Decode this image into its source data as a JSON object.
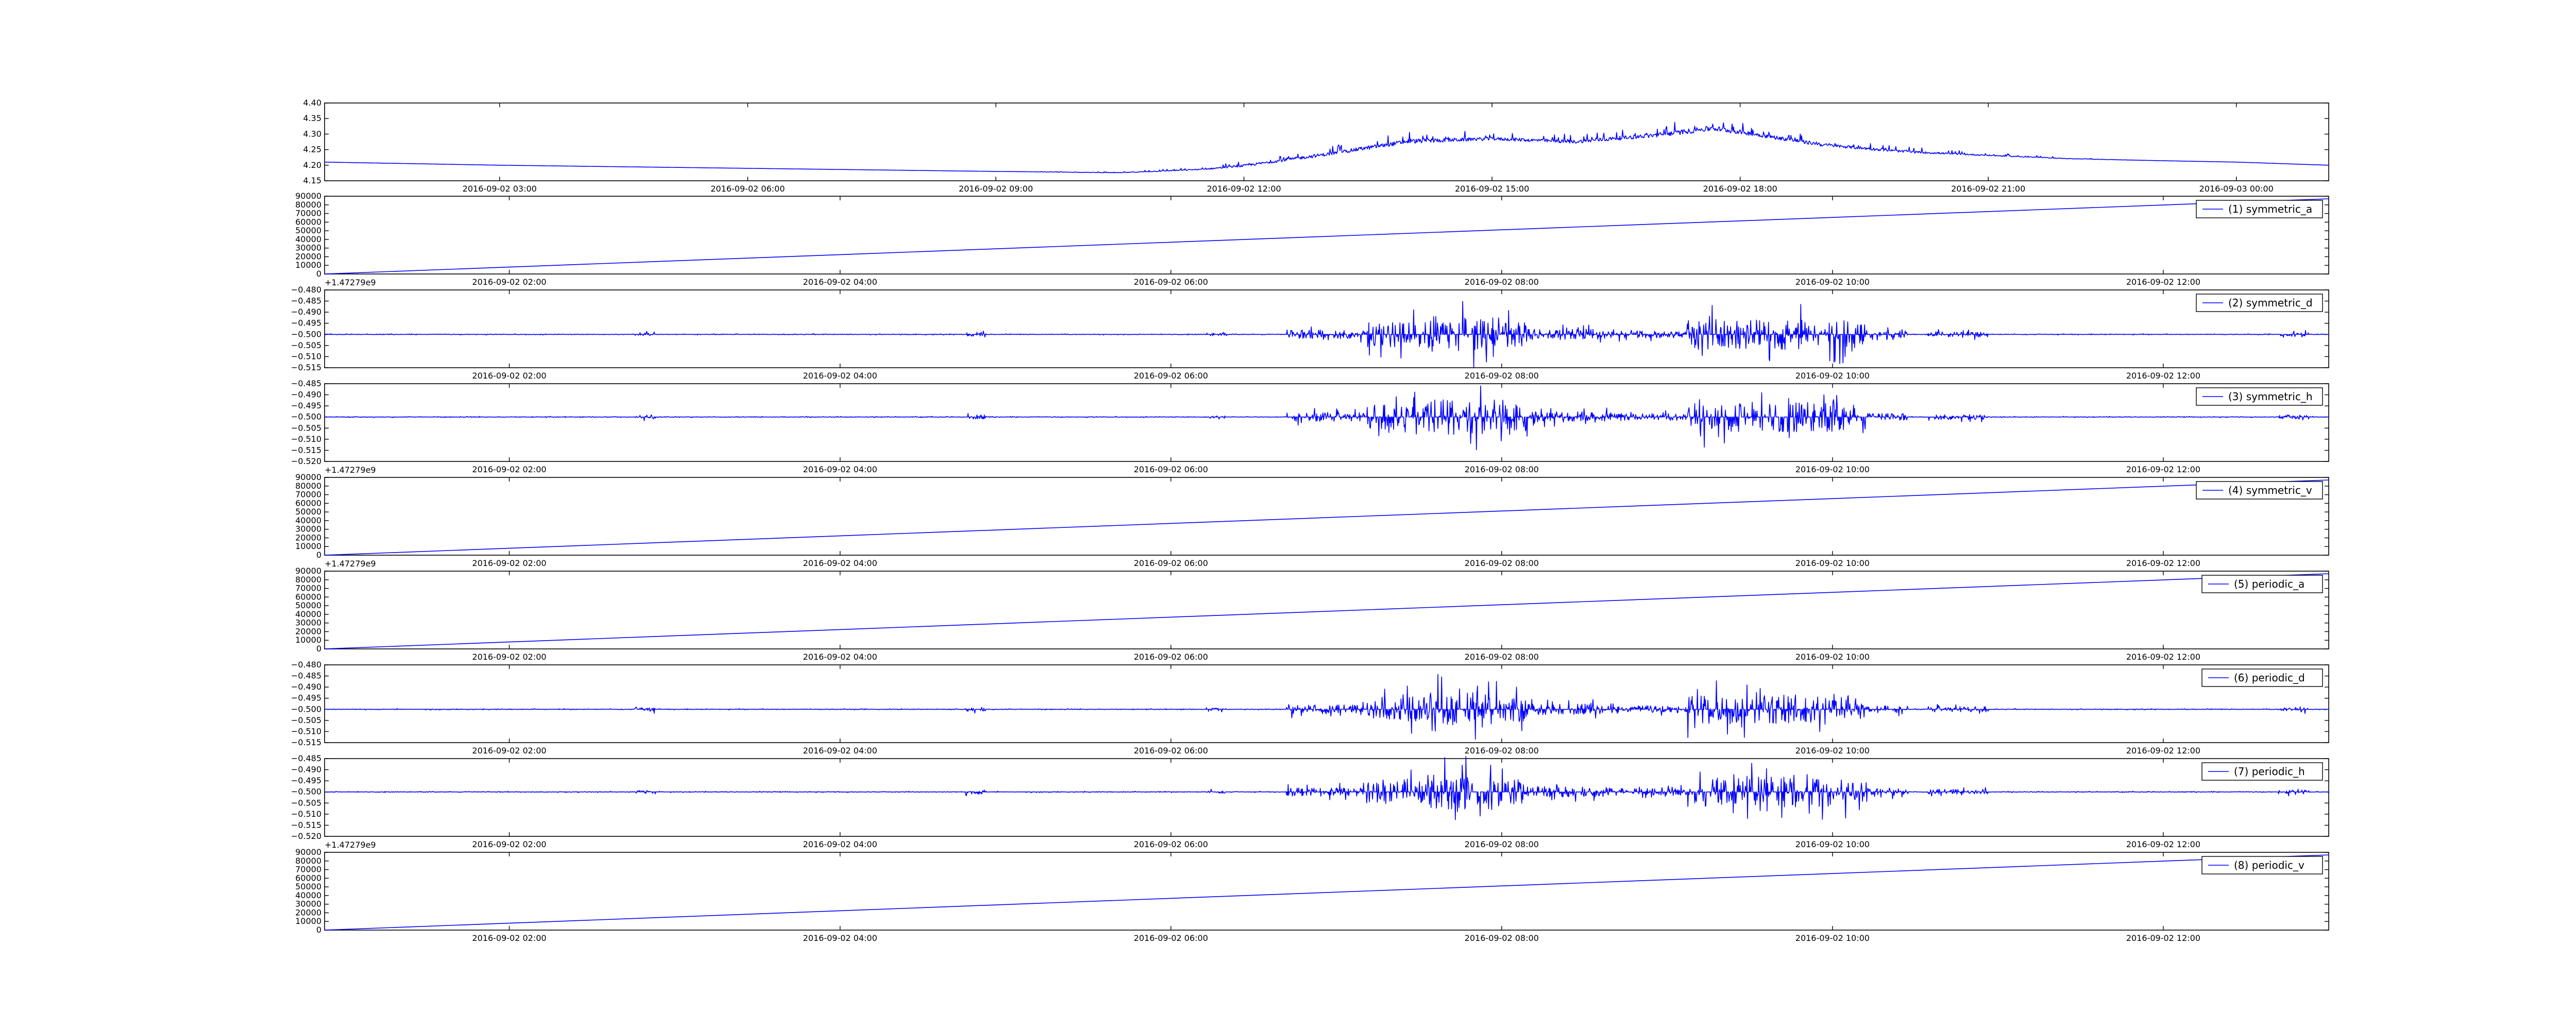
{
  "figure": {
    "line_color": "#0000ff",
    "frame_color": "#000000",
    "background": "#ffffff"
  },
  "chart_data": [
    {
      "type": "line",
      "panel": 0,
      "xlabel": "",
      "ylabel": "",
      "ylim": [
        4.15,
        4.4
      ],
      "yticks": [
        "4.15",
        "4.20",
        "4.25",
        "4.30",
        "4.35",
        "4.40"
      ],
      "xlim": [
        "2016-09-02 00:53",
        "2016-09-03 01:07"
      ],
      "xticks": [
        "2016-09-02 03:00",
        "2016-09-02 06:00",
        "2016-09-02 09:00",
        "2016-09-02 12:00",
        "2016-09-02 15:00",
        "2016-09-02 18:00",
        "2016-09-02 21:00",
        "2016-09-03 00:00"
      ],
      "offset_text": "",
      "grid": false,
      "legend": "",
      "series": [
        {
          "x": [
            "2016-09-02 00:53",
            "2016-09-02 03:00",
            "2016-09-02 06:00",
            "2016-09-02 09:00",
            "2016-09-02 10:30",
            "2016-09-02 11:30",
            "2016-09-02 12:00",
            "2016-09-02 13:00",
            "2016-09-02 14:00",
            "2016-09-02 15:00",
            "2016-09-02 16:00",
            "2016-09-02 17:00",
            "2016-09-02 17:40",
            "2016-09-02 18:00",
            "2016-09-02 19:00",
            "2016-09-02 20:00",
            "2016-09-02 21:00",
            "2016-09-02 22:00",
            "2016-09-02 23:00",
            "2016-09-03 00:00",
            "2016-09-03 01:07"
          ],
          "y": [
            4.21,
            4.2,
            4.19,
            4.18,
            4.175,
            4.185,
            4.195,
            4.23,
            4.27,
            4.28,
            4.27,
            4.29,
            4.31,
            4.3,
            4.26,
            4.24,
            4.23,
            4.22,
            4.215,
            4.21,
            4.2
          ],
          "envelope": [
            0,
            0,
            0,
            0,
            0.005,
            0.01,
            0.02,
            0.03,
            0.04,
            0.03,
            0.03,
            0.04,
            0.05,
            0.04,
            0.03,
            0.02,
            0.01,
            0.005,
            0,
            0,
            0
          ]
        }
      ]
    },
    {
      "type": "line",
      "panel": 1,
      "xlabel": "",
      "ylabel": "",
      "ylim": [
        0,
        90000
      ],
      "yticks": [
        "0",
        "10000",
        "20000",
        "30000",
        "40000",
        "50000",
        "60000",
        "70000",
        "80000",
        "90000"
      ],
      "xlim": [
        "2016-09-02 00:53",
        "2016-09-02 13:00"
      ],
      "xticks": [
        "2016-09-02 02:00",
        "2016-09-02 04:00",
        "2016-09-02 06:00",
        "2016-09-02 08:00",
        "2016-09-02 10:00",
        "2016-09-02 12:00"
      ],
      "offset_text": "+1.47279e9",
      "grid": false,
      "legend": "upper right",
      "series": [
        {
          "name": "(1) symmetric_a",
          "x": [
            "2016-09-02 00:53",
            "2016-09-02 13:00"
          ],
          "y": [
            0,
            87000
          ]
        }
      ]
    },
    {
      "type": "line",
      "panel": 2,
      "xlabel": "",
      "ylabel": "",
      "ylim": [
        -0.515,
        -0.48
      ],
      "yticks": [
        "−0.515",
        "−0.510",
        "−0.505",
        "−0.500",
        "−0.495",
        "−0.490",
        "−0.485",
        "−0.480"
      ],
      "xlim": [
        "2016-09-02 00:53",
        "2016-09-02 13:00"
      ],
      "xticks": [
        "2016-09-02 02:00",
        "2016-09-02 04:00",
        "2016-09-02 06:00",
        "2016-09-02 08:00",
        "2016-09-02 10:00",
        "2016-09-02 12:00"
      ],
      "offset_text": "",
      "grid": false,
      "legend": "upper right",
      "series": [
        {
          "name": "(2) symmetric_d",
          "baseline": -0.5,
          "max_deviation": 0.016
        }
      ]
    },
    {
      "type": "line",
      "panel": 3,
      "xlabel": "",
      "ylabel": "",
      "ylim": [
        -0.52,
        -0.485
      ],
      "yticks": [
        "−0.520",
        "−0.515",
        "−0.510",
        "−0.505",
        "−0.500",
        "−0.495",
        "−0.490",
        "−0.485"
      ],
      "xlim": [
        "2016-09-02 00:53",
        "2016-09-02 13:00"
      ],
      "xticks": [
        "2016-09-02 02:00",
        "2016-09-02 04:00",
        "2016-09-02 06:00",
        "2016-09-02 08:00",
        "2016-09-02 10:00",
        "2016-09-02 12:00"
      ],
      "offset_text": "+1.47279e9",
      "grid": false,
      "legend": "upper right",
      "series": [
        {
          "name": "(3) symmetric_h",
          "baseline": -0.5,
          "max_deviation": 0.016
        }
      ]
    },
    {
      "type": "line",
      "panel": 4,
      "xlabel": "",
      "ylabel": "",
      "ylim": [
        0,
        90000
      ],
      "yticks": [
        "0",
        "10000",
        "20000",
        "30000",
        "40000",
        "50000",
        "60000",
        "70000",
        "80000",
        "90000"
      ],
      "xlim": [
        "2016-09-02 00:53",
        "2016-09-02 13:00"
      ],
      "xticks": [
        "2016-09-02 02:00",
        "2016-09-02 04:00",
        "2016-09-02 06:00",
        "2016-09-02 08:00",
        "2016-09-02 10:00",
        "2016-09-02 12:00"
      ],
      "offset_text": "+1.47279e9",
      "grid": false,
      "legend": "upper right",
      "series": [
        {
          "name": "(4) symmetric_v",
          "x": [
            "2016-09-02 00:53",
            "2016-09-02 13:00"
          ],
          "y": [
            0,
            87000
          ]
        }
      ]
    },
    {
      "type": "line",
      "panel": 5,
      "xlabel": "",
      "ylabel": "",
      "ylim": [
        0,
        90000
      ],
      "yticks": [
        "0",
        "10000",
        "20000",
        "30000",
        "40000",
        "50000",
        "60000",
        "70000",
        "80000",
        "90000"
      ],
      "xlim": [
        "2016-09-02 00:53",
        "2016-09-02 13:00"
      ],
      "xticks": [
        "2016-09-02 02:00",
        "2016-09-02 04:00",
        "2016-09-02 06:00",
        "2016-09-02 08:00",
        "2016-09-02 10:00",
        "2016-09-02 12:00"
      ],
      "offset_text": "",
      "grid": false,
      "legend": "upper right",
      "series": [
        {
          "name": "(5) periodic_a",
          "x": [
            "2016-09-02 00:53",
            "2016-09-02 13:00"
          ],
          "y": [
            0,
            87000
          ]
        }
      ]
    },
    {
      "type": "line",
      "panel": 6,
      "xlabel": "",
      "ylabel": "",
      "ylim": [
        -0.515,
        -0.48
      ],
      "yticks": [
        "−0.515",
        "−0.510",
        "−0.505",
        "−0.500",
        "−0.495",
        "−0.490",
        "−0.485",
        "−0.480"
      ],
      "xlim": [
        "2016-09-02 00:53",
        "2016-09-02 13:00"
      ],
      "xticks": [
        "2016-09-02 02:00",
        "2016-09-02 04:00",
        "2016-09-02 06:00",
        "2016-09-02 08:00",
        "2016-09-02 10:00",
        "2016-09-02 12:00"
      ],
      "offset_text": "",
      "grid": false,
      "legend": "upper right",
      "series": [
        {
          "name": "(6) periodic_d",
          "baseline": -0.5,
          "max_deviation": 0.016
        }
      ]
    },
    {
      "type": "line",
      "panel": 7,
      "xlabel": "",
      "ylabel": "",
      "ylim": [
        -0.52,
        -0.485
      ],
      "yticks": [
        "−0.520",
        "−0.515",
        "−0.510",
        "−0.505",
        "−0.500",
        "−0.495",
        "−0.490",
        "−0.485"
      ],
      "xlim": [
        "2016-09-02 00:53",
        "2016-09-02 13:00"
      ],
      "xticks": [
        "2016-09-02 02:00",
        "2016-09-02 04:00",
        "2016-09-02 06:00",
        "2016-09-02 08:00",
        "2016-09-02 10:00",
        "2016-09-02 12:00"
      ],
      "offset_text": "+1.47279e9",
      "grid": false,
      "legend": "upper right",
      "series": [
        {
          "name": "(7) periodic_h",
          "baseline": -0.5,
          "max_deviation": 0.016
        }
      ]
    },
    {
      "type": "line",
      "panel": 8,
      "xlabel": "",
      "ylabel": "",
      "ylim": [
        0,
        90000
      ],
      "yticks": [
        "0",
        "10000",
        "20000",
        "30000",
        "40000",
        "50000",
        "60000",
        "70000",
        "80000",
        "90000"
      ],
      "xlim": [
        "2016-09-02 00:53",
        "2016-09-02 13:00"
      ],
      "xticks": [
        "2016-09-02 02:00",
        "2016-09-02 04:00",
        "2016-09-02 06:00",
        "2016-09-02 08:00",
        "2016-09-02 10:00",
        "2016-09-02 12:00"
      ],
      "offset_text": "",
      "grid": false,
      "legend": "upper right",
      "series": [
        {
          "name": "(8) periodic_v",
          "x": [
            "2016-09-02 00:53",
            "2016-09-02 13:00"
          ],
          "y": [
            0,
            87000
          ]
        }
      ]
    }
  ]
}
